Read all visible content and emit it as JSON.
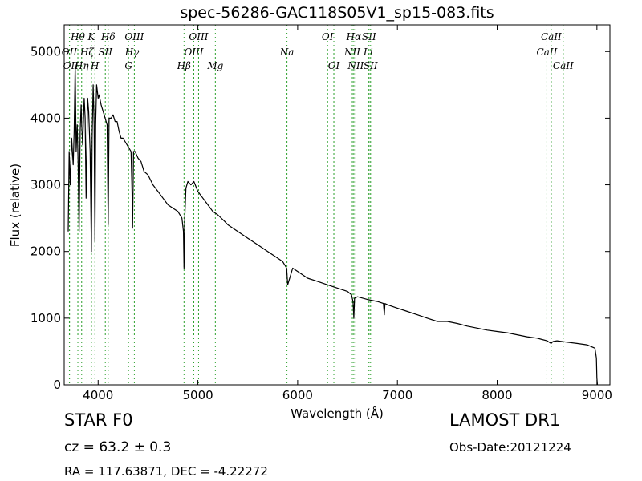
{
  "footer": {
    "class_label": "STAR   F0",
    "survey": "LAMOST DR1",
    "cz": "cz = 63.2  ± 0.3",
    "obs_date": "Obs-Date:20121224",
    "radec": "RA = 117.63871, DEC = -4.22272"
  },
  "colors": {
    "line": "#000000",
    "marker": "#2ca02c",
    "axis": "#000000"
  },
  "chart_data": {
    "type": "line",
    "title": "spec-56286-GAC118S05V1_sp15-083.fits",
    "xlabel": "Wavelength (Å)",
    "ylabel": "Flux (relative)",
    "xlim": [
      3660,
      9130
    ],
    "ylim": [
      0,
      5400
    ],
    "x_ticks": [
      4000,
      5000,
      6000,
      7000,
      8000,
      9000
    ],
    "y_ticks": [
      0,
      1000,
      2000,
      3000,
      4000,
      5000
    ],
    "grid": false,
    "series": [
      {
        "x": [
          3700,
          3710,
          3720,
          3735,
          3750,
          3760,
          3770,
          3780,
          3790,
          3800,
          3810,
          3820,
          3830,
          3835,
          3845,
          3860,
          3870,
          3880,
          3889,
          3895,
          3905,
          3920,
          3933,
          3940,
          3950,
          3960,
          3968,
          3975,
          3985,
          4000,
          4010,
          4030,
          4050,
          4070,
          4090,
          4101,
          4110,
          4130,
          4150,
          4170,
          4190,
          4210,
          4230,
          4250,
          4270,
          4290,
          4310,
          4330,
          4340,
          4345,
          4355,
          4370,
          4400,
          4430,
          4460,
          4500,
          4550,
          4600,
          4650,
          4700,
          4750,
          4800,
          4840,
          4855,
          4861,
          4868,
          4880,
          4900,
          4930,
          4960,
          5000,
          5050,
          5100,
          5150,
          5200,
          5270,
          5300,
          5400,
          5500,
          5600,
          5700,
          5800,
          5850,
          5890,
          5900,
          5950,
          6000,
          6100,
          6200,
          6300,
          6400,
          6500,
          6540,
          6555,
          6563,
          6570,
          6600,
          6700,
          6800,
          6860,
          6869,
          6875,
          6900,
          7000,
          7100,
          7200,
          7300,
          7400,
          7500,
          7600,
          7700,
          7800,
          7900,
          8000,
          8100,
          8200,
          8300,
          8400,
          8450,
          8500,
          8540,
          8560,
          8600,
          8650,
          8700,
          8800,
          8900,
          8980,
          8995,
          9000,
          9005
        ],
        "y": [
          2300,
          3500,
          3000,
          3700,
          3300,
          3800,
          4800,
          3500,
          3900,
          3300,
          2300,
          3800,
          4200,
          3900,
          3600,
          4300,
          4000,
          2800,
          3800,
          4300,
          4100,
          3500,
          2000,
          3700,
          4500,
          3900,
          2150,
          3900,
          4500,
          4300,
          4350,
          4200,
          4100,
          4000,
          3900,
          2400,
          4000,
          4000,
          4050,
          3950,
          3950,
          3800,
          3700,
          3700,
          3650,
          3600,
          3550,
          3500,
          2900,
          2350,
          3500,
          3500,
          3400,
          3350,
          3200,
          3150,
          3000,
          2900,
          2800,
          2700,
          2650,
          2600,
          2500,
          2300,
          1750,
          2500,
          2950,
          3050,
          3000,
          3050,
          2900,
          2800,
          2700,
          2600,
          2550,
          2450,
          2400,
          2300,
          2200,
          2100,
          2000,
          1900,
          1850,
          1750,
          1500,
          1750,
          1700,
          1600,
          1550,
          1500,
          1450,
          1400,
          1350,
          1250,
          1000,
          1300,
          1320,
          1280,
          1250,
          1220,
          1050,
          1220,
          1200,
          1150,
          1100,
          1050,
          1000,
          950,
          950,
          920,
          880,
          850,
          820,
          800,
          780,
          750,
          720,
          700,
          680,
          660,
          620,
          650,
          660,
          650,
          640,
          620,
          600,
          550,
          400,
          100,
          0
        ]
      }
    ],
    "line_markers": [
      {
        "wavelength": 3712,
        "label": "OII",
        "row": 1
      },
      {
        "wavelength": 3727,
        "label": "OII",
        "row": 2
      },
      {
        "wavelength": 3797,
        "label": "Hθ",
        "row": 0
      },
      {
        "wavelength": 3835,
        "label": "Hη",
        "row": 2
      },
      {
        "wavelength": 3889,
        "label": "Hζ",
        "row": 1
      },
      {
        "wavelength": 3933,
        "label": "K",
        "row": 0
      },
      {
        "wavelength": 3968,
        "label": "H",
        "row": 2
      },
      {
        "wavelength": 4072,
        "label": "SII",
        "row": 1
      },
      {
        "wavelength": 4101,
        "label": "Hδ",
        "row": 0
      },
      {
        "wavelength": 4305,
        "label": "G",
        "row": 2
      },
      {
        "wavelength": 4340,
        "label": "Hγ",
        "row": 1
      },
      {
        "wavelength": 4363,
        "label": "OIII",
        "row": 0
      },
      {
        "wavelength": 4861,
        "label": "Hβ",
        "row": 2
      },
      {
        "wavelength": 4959,
        "label": "OIII",
        "row": 1
      },
      {
        "wavelength": 5007,
        "label": "OIII",
        "row": 0
      },
      {
        "wavelength": 5175,
        "label": "Mg",
        "row": 2
      },
      {
        "wavelength": 5893,
        "label": "Na",
        "row": 1
      },
      {
        "wavelength": 6300,
        "label": "OI",
        "row": 0
      },
      {
        "wavelength": 6363,
        "label": "OI",
        "row": 2
      },
      {
        "wavelength": 6548,
        "label": "NII",
        "row": 1
      },
      {
        "wavelength": 6563,
        "label": "Hα",
        "row": 0
      },
      {
        "wavelength": 6583,
        "label": "NII",
        "row": 2
      },
      {
        "wavelength": 6707,
        "label": "Li",
        "row": 1
      },
      {
        "wavelength": 6716,
        "label": "SII",
        "row": 0
      },
      {
        "wavelength": 6731,
        "label": "SII",
        "row": 2
      },
      {
        "wavelength": 8498,
        "label": "CaII",
        "row": 1
      },
      {
        "wavelength": 8542,
        "label": "CaII",
        "row": 0
      },
      {
        "wavelength": 8662,
        "label": "CaII",
        "row": 2
      }
    ]
  }
}
